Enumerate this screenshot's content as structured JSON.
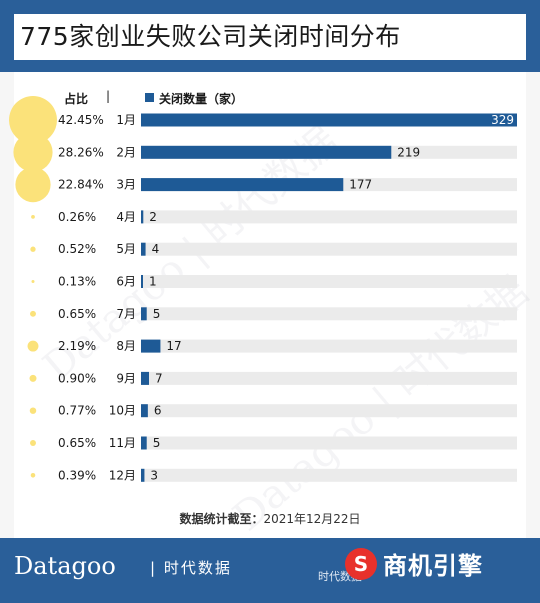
{
  "title": "775家创业失败公司关闭时间分布",
  "header": {
    "share_label": "占比",
    "legend_label": "关闭数量（家）"
  },
  "note": {
    "label": "数据统计截至：",
    "date": "2021年12月22日"
  },
  "footer": {
    "logo": "Datagoo",
    "logo_cn": "时代数据",
    "source": "时代数据 · ",
    "brand": "商机引擎",
    "brand_mark": "S"
  },
  "colors": {
    "bar": "#1e5a96",
    "track": "#ebebeb",
    "bubble": "#fbe27a",
    "header_bg": "#2a5f99"
  },
  "chart_data": {
    "type": "bar",
    "title": "775家创业失败公司关闭时间分布",
    "categories": [
      "1月",
      "2月",
      "3月",
      "4月",
      "5月",
      "6月",
      "7月",
      "8月",
      "9月",
      "10月",
      "11月",
      "12月"
    ],
    "series": [
      {
        "name": "关闭数量（家）",
        "values": [
          329,
          219,
          177,
          2,
          4,
          1,
          5,
          17,
          7,
          6,
          5,
          3
        ]
      }
    ],
    "shares": [
      "42.45%",
      "28.26%",
      "22.84%",
      "0.26%",
      "0.52%",
      "0.13%",
      "0.65%",
      "2.19%",
      "0.90%",
      "0.77%",
      "0.65%",
      "0.39%"
    ],
    "xlim": [
      0,
      329
    ],
    "legend": "top"
  }
}
